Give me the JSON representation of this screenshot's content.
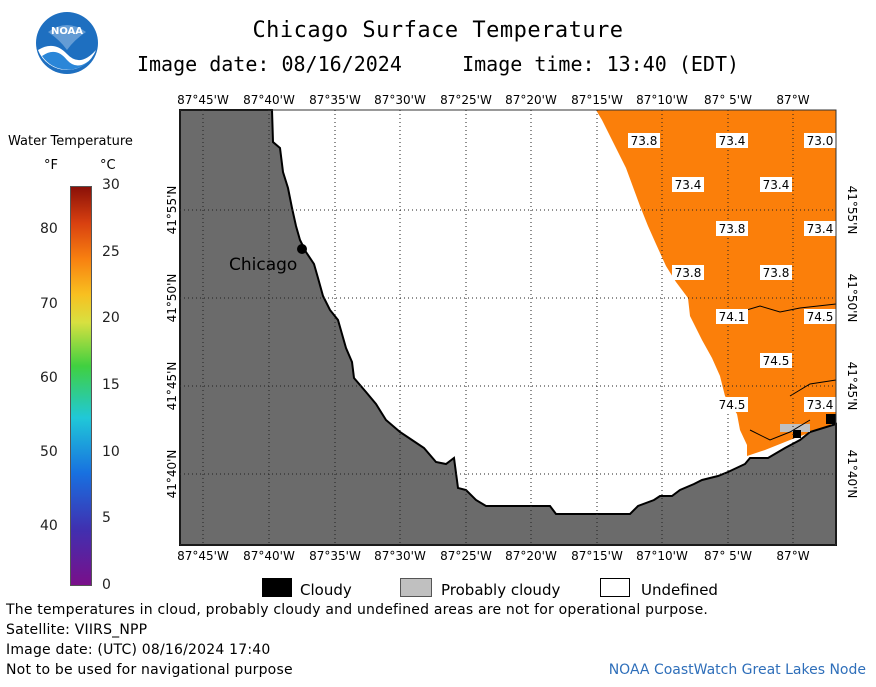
{
  "header": {
    "title": "Chicago Surface Temperature",
    "date_label": "Image date: 08/16/2024",
    "time_label": "Image time: 13:40 (EDT)"
  },
  "logo": {
    "text": "NOAA",
    "icon": "noaa-logo-icon"
  },
  "colorbar": {
    "title": "Water Temperature",
    "unit_f": "°F",
    "unit_c": "°C",
    "f_ticks": [
      "40",
      "50",
      "60",
      "70",
      "80"
    ],
    "c_ticks": [
      "0",
      "5",
      "10",
      "15",
      "20",
      "25",
      "30"
    ]
  },
  "map": {
    "lon_labels": [
      "87°45'W",
      "87°40'W",
      "87°35'W",
      "87°30'W",
      "87°25'W",
      "87°20'W",
      "87°15'W",
      "87°10'W",
      "87° 5'W",
      "87°W"
    ],
    "lat_labels": [
      "41°55'N",
      "41°50'N",
      "41°45'N",
      "41°40'N"
    ],
    "city_label": "Chicago",
    "temperatures": [
      "73.8",
      "73.4",
      "73.0",
      "73.4",
      "73.4",
      "73.8",
      "73.4",
      "73.8",
      "73.8",
      "74.1",
      "74.5",
      "74.5",
      "74.5",
      "73.4"
    ],
    "colors": {
      "land": "#6b6b6b",
      "water_sst": "#fb7f0a",
      "undefined": "#ffffff",
      "probably_cloudy": "#c0c0c0",
      "cloudy": "#000000"
    }
  },
  "legend": {
    "cloudy": "Cloudy",
    "probably_cloudy": "Probably cloudy",
    "undefined": "Undefined"
  },
  "footer": {
    "disclaimer": "The temperatures in cloud, probably cloudy and undefined areas are not for operational purpose.",
    "satellite": "Satellite: VIIRS_NPP",
    "utc_date": "Image date: (UTC) 08/16/2024  17:40",
    "navigation": "Not to be used for navigational purpose",
    "credit": "NOAA CoastWatch Great Lakes Node"
  }
}
